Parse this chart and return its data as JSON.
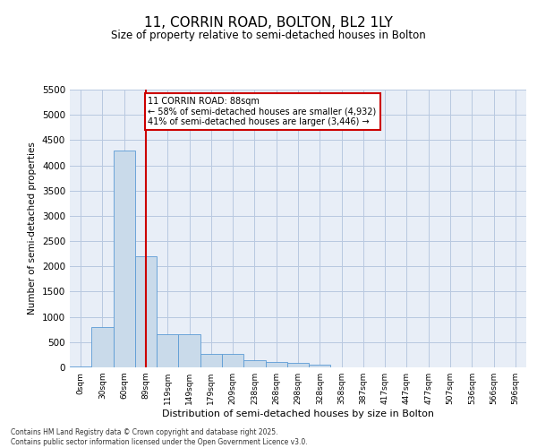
{
  "title": "11, CORRIN ROAD, BOLTON, BL2 1LY",
  "subtitle": "Size of property relative to semi-detached houses in Bolton",
  "xlabel": "Distribution of semi-detached houses by size in Bolton",
  "ylabel": "Number of semi-detached properties",
  "bar_color": "#c9daea",
  "bar_edge_color": "#5b9bd5",
  "grid_color": "#b8c8e0",
  "background_color": "#e8eef7",
  "annotation_box_color": "#cc0000",
  "vline_color": "#cc0000",
  "annotation_title": "11 CORRIN ROAD: 88sqm",
  "annotation_line1": "← 58% of semi-detached houses are smaller (4,932)",
  "annotation_line2": "41% of semi-detached houses are larger (3,446) →",
  "footer_line1": "Contains HM Land Registry data © Crown copyright and database right 2025.",
  "footer_line2": "Contains public sector information licensed under the Open Government Licence v3.0.",
  "bin_labels": [
    "0sqm",
    "30sqm",
    "60sqm",
    "89sqm",
    "119sqm",
    "149sqm",
    "179sqm",
    "209sqm",
    "238sqm",
    "268sqm",
    "298sqm",
    "328sqm",
    "358sqm",
    "387sqm",
    "417sqm",
    "447sqm",
    "477sqm",
    "507sqm",
    "536sqm",
    "566sqm",
    "596sqm"
  ],
  "bin_values": [
    10,
    800,
    4300,
    2200,
    650,
    650,
    270,
    270,
    140,
    100,
    90,
    55,
    0,
    0,
    0,
    0,
    0,
    0,
    0,
    0,
    0
  ],
  "property_bin_index": 3,
  "ylim": [
    0,
    5500
  ],
  "yticks": [
    0,
    500,
    1000,
    1500,
    2000,
    2500,
    3000,
    3500,
    4000,
    4500,
    5000,
    5500
  ]
}
